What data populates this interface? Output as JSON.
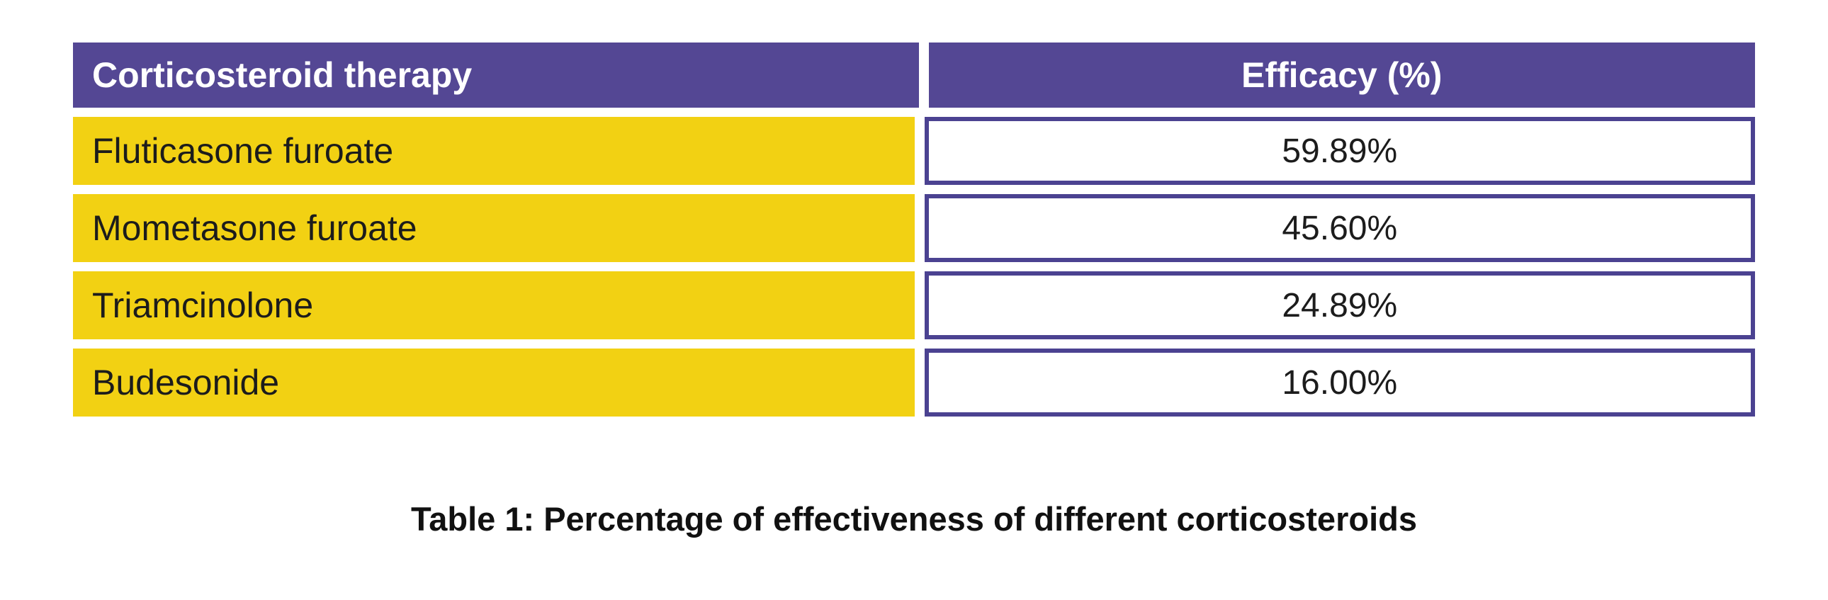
{
  "table": {
    "columns": [
      "Corticosteroid therapy",
      "Efficacy (%)"
    ],
    "rows": [
      {
        "therapy": "Fluticasone furoate",
        "efficacy": "59.89%"
      },
      {
        "therapy": "Mometasone furoate",
        "efficacy": "45.60%"
      },
      {
        "therapy": "Triamcinolone",
        "efficacy": "24.89%"
      },
      {
        "therapy": "Budesonide",
        "efficacy": "16.00%"
      }
    ]
  },
  "caption": "Table 1: Percentage of effectiveness of different corticosteroids",
  "colors": {
    "header_purple": "#544794",
    "cell_border_purple": "#4b4291",
    "row_yellow": "#F2D113",
    "header_text": "#ffffff",
    "body_text": "#1c1c1c",
    "background": "#ffffff"
  },
  "chart_data": {
    "type": "table",
    "title": "Table 1: Percentage of effectiveness of different corticosteroids",
    "columns": [
      "Corticosteroid therapy",
      "Efficacy (%)"
    ],
    "categories": [
      "Fluticasone furoate",
      "Mometasone furoate",
      "Triamcinolone",
      "Budesonide"
    ],
    "values": [
      59.89,
      45.6,
      24.89,
      16.0
    ],
    "unit": "%"
  }
}
